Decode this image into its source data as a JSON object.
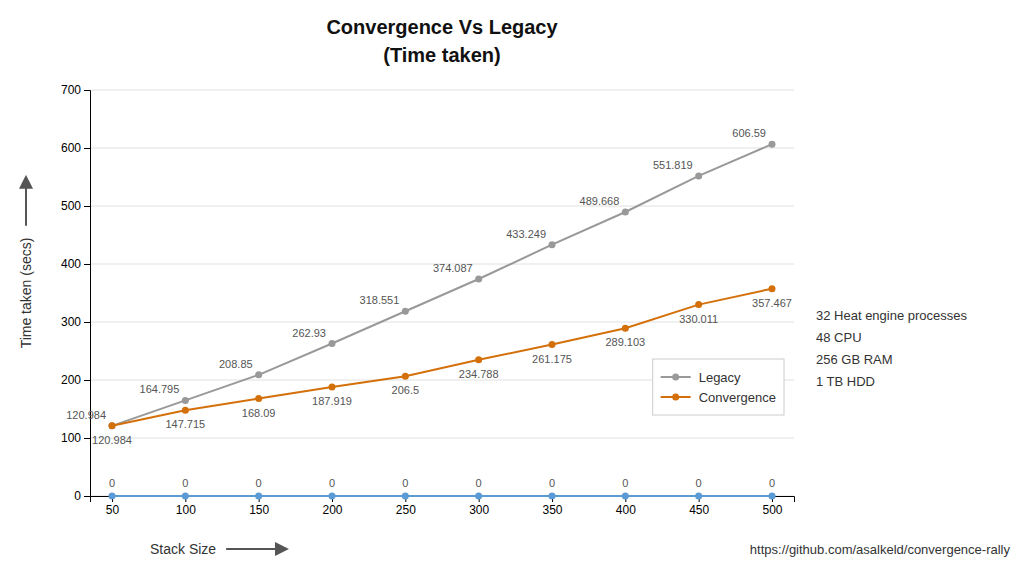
{
  "chart_data": {
    "type": "line",
    "title": "Convergence Vs Legacy",
    "subtitle": "(Time taken)",
    "xlabel": "Stack Size",
    "ylabel": "Time taken (secs)",
    "x": [
      50,
      100,
      150,
      200,
      250,
      300,
      350,
      400,
      450,
      500
    ],
    "series": [
      {
        "color": "#5b9bd5",
        "values": [
          0,
          0,
          0,
          0,
          0,
          0,
          0,
          0,
          0,
          0
        ]
      },
      {
        "name": "Legacy",
        "color": "#999999",
        "values": [
          120.984,
          164.795,
          208.85,
          262.93,
          318.551,
          374.087,
          433.249,
          489.668,
          551.819,
          606.59
        ]
      },
      {
        "name": "Convergence",
        "color": "#d4700a",
        "values": [
          120.984,
          147.715,
          168.09,
          187.919,
          206.5,
          234.788,
          261.175,
          289.103,
          330.011,
          357.467
        ]
      }
    ],
    "xlim": [
      35,
      515
    ],
    "ylim": [
      0,
      700
    ],
    "xticks": [
      50,
      100,
      150,
      200,
      250,
      300,
      350,
      400,
      450,
      500
    ],
    "yticks": [
      0,
      100,
      200,
      300,
      400,
      500,
      600,
      700
    ],
    "grid": true,
    "legend": "lower right",
    "marker": "circle",
    "data_labels": true,
    "annotations": [
      "32 Heat engine processes\n48 CPU\n256 GB RAM\n1 TB HDD",
      "https://github.com/asalkeld/convergence-rally"
    ]
  }
}
